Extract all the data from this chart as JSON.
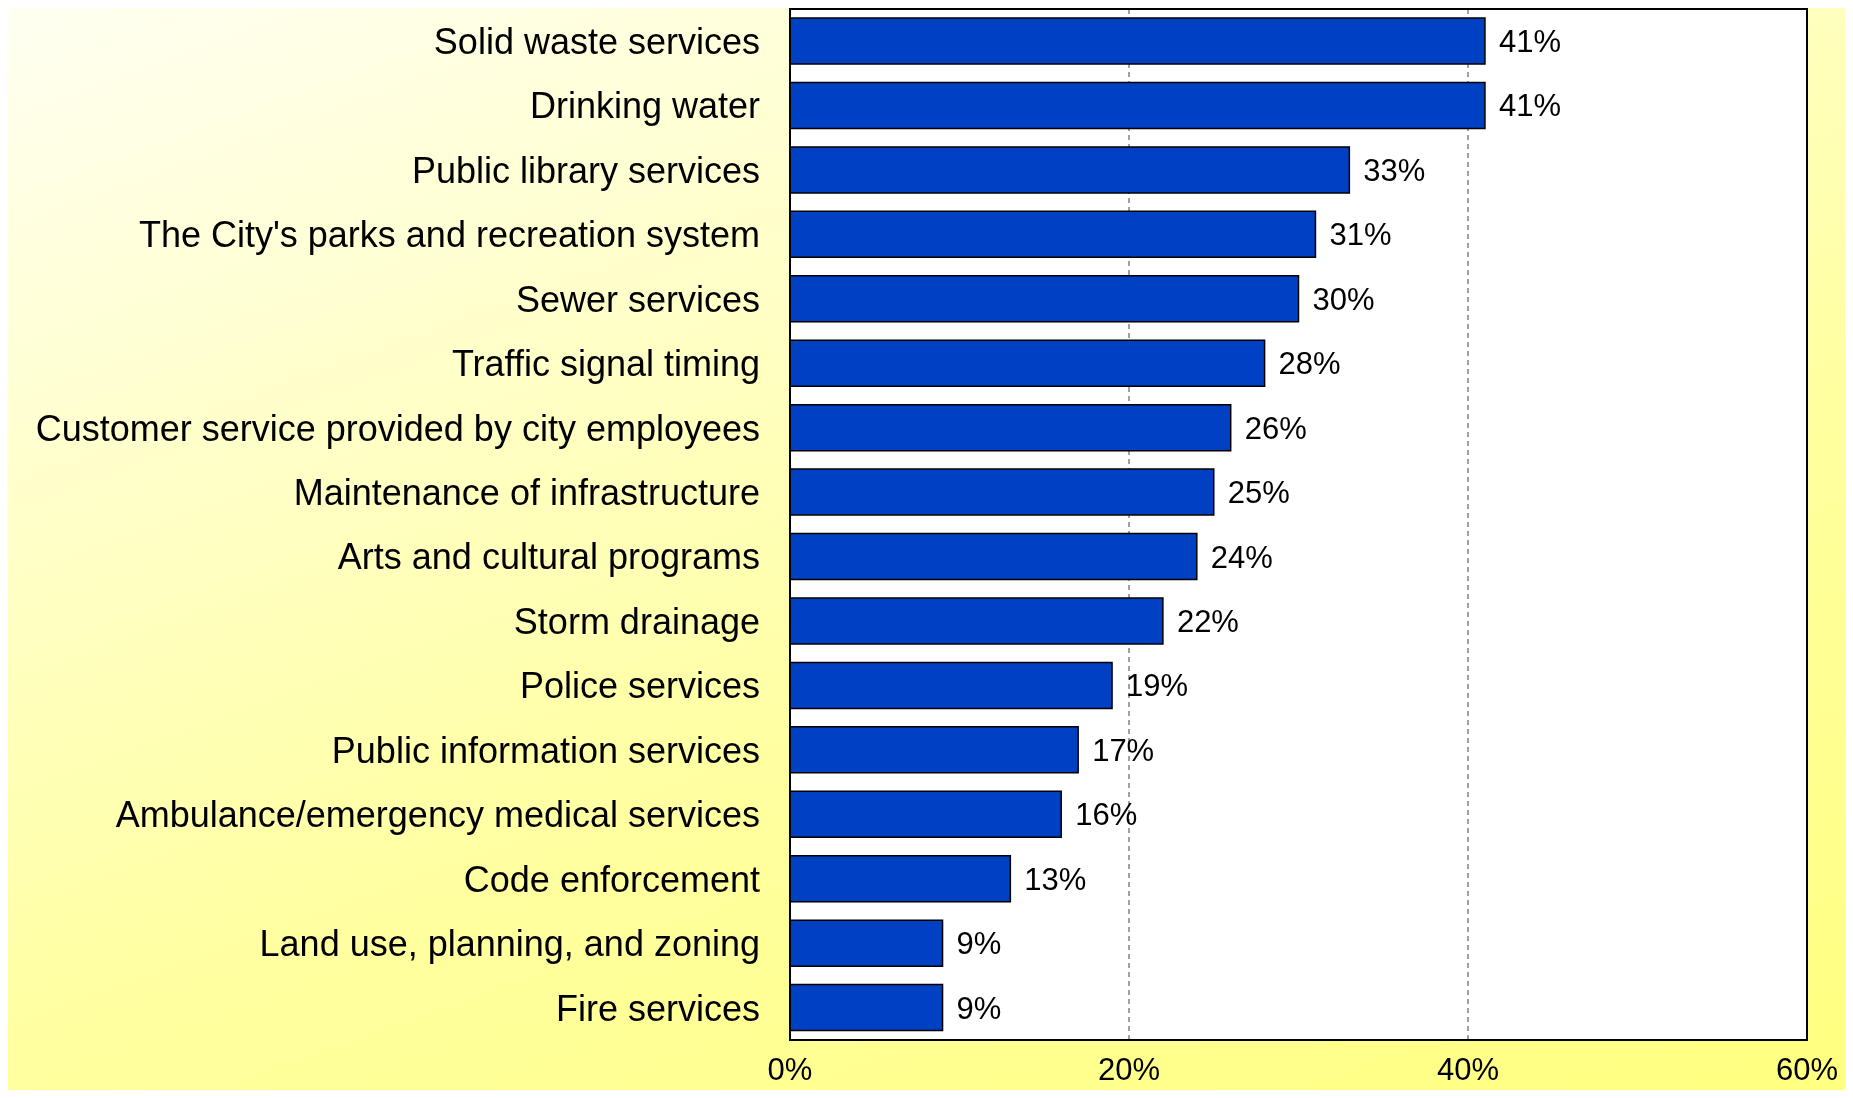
{
  "chart_data": {
    "type": "bar",
    "orientation": "horizontal",
    "categories": [
      "Solid waste services",
      "Drinking water",
      "Public library services",
      "The City's parks and recreation system",
      "Sewer services",
      "Traffic signal timing",
      "Customer service provided by city employees",
      "Maintenance of infrastructure",
      "Arts and cultural programs",
      "Storm drainage",
      "Police services",
      "Public information services",
      "Ambulance/emergency medical services",
      "Code enforcement",
      "Land use, planning, and zoning",
      "Fire services"
    ],
    "values": [
      41,
      41,
      33,
      31,
      30,
      28,
      26,
      25,
      24,
      22,
      19,
      17,
      16,
      13,
      9,
      9
    ],
    "value_labels": [
      "41%",
      "41%",
      "33%",
      "31%",
      "30%",
      "28%",
      "26%",
      "25%",
      "24%",
      "22%",
      "19%",
      "17%",
      "16%",
      "13%",
      "9%",
      "9%"
    ],
    "color": "#0041c4",
    "xlim": [
      0,
      60
    ],
    "xticks": [
      {
        "value": 0,
        "label": "0%"
      },
      {
        "value": 20,
        "label": "20%"
      },
      {
        "value": 40,
        "label": "40%"
      },
      {
        "value": 60,
        "label": "60%"
      }
    ],
    "grid": "x"
  }
}
